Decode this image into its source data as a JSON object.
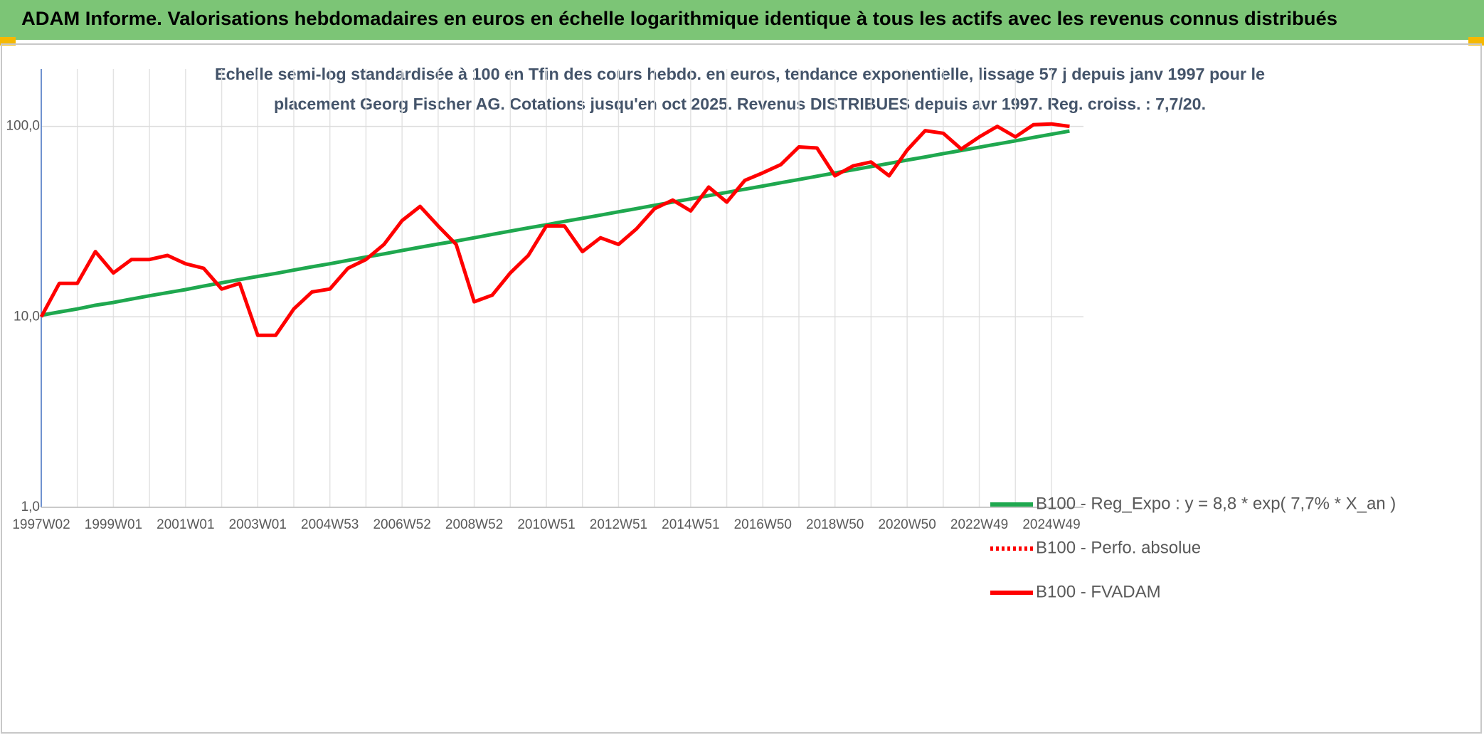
{
  "chart_data": {
    "type": "line",
    "title": "ADAM Informe. Valorisations hebdomadaires en euros en échelle logarithmique identique à tous les actifs avec les revenus connus distribués",
    "subtitle": [
      "Echelle semi-log standardisée à 100 en Tfin des cours hebdo. en euros, tendance exponentielle, lissage 57 j depuis janv 1997 pour le",
      "placement Georg Fischer AG. Cotations jusqu'en oct 2025. Revenus DISTRIBUES depuis avr 1997. Reg. croiss. : 7,7/20."
    ],
    "x": [
      "1997W02",
      null,
      null,
      null,
      "1999W01",
      null,
      null,
      null,
      "2001W01",
      null,
      null,
      null,
      "2003W01",
      null,
      null,
      null,
      "2004W53",
      null,
      null,
      null,
      "2006W52",
      null,
      null,
      null,
      "2008W52",
      null,
      null,
      null,
      "2010W51",
      null,
      null,
      null,
      "2012W51",
      null,
      null,
      null,
      "2014W51",
      null,
      null,
      null,
      "2016W50",
      null,
      null,
      null,
      "2018W50",
      null,
      null,
      null,
      "2020W50",
      null,
      null,
      null,
      "2022W49",
      null,
      null,
      null,
      "2024W49",
      null
    ],
    "log_scale": true,
    "ylim": [
      1,
      200
    ],
    "yticks": [
      {
        "value": 1,
        "label": "1,0"
      },
      {
        "value": 10,
        "label": "10,0"
      },
      {
        "value": 100,
        "label": "100,0"
      }
    ],
    "grid": true,
    "legend": "right",
    "series": [
      {
        "name": "B100 - Reg_Expo : y = 8,8 * exp( 7,7% *  X_an )",
        "color": "#1fa84f",
        "dash": false,
        "values": [
          10.2,
          10.6,
          11.0,
          11.5,
          11.9,
          12.4,
          12.9,
          13.4,
          13.9,
          14.5,
          15.1,
          15.7,
          16.3,
          16.9,
          17.6,
          18.3,
          19.0,
          19.8,
          20.6,
          21.4,
          22.3,
          23.2,
          24.1,
          25.0,
          26.0,
          27.1,
          28.2,
          29.3,
          30.4,
          31.7,
          32.9,
          34.2,
          35.6,
          37.0,
          38.5,
          40.0,
          41.6,
          43.3,
          45.0,
          46.8,
          48.6,
          50.6,
          52.6,
          54.7,
          56.9,
          59.1,
          61.5,
          63.9,
          66.5,
          69.1,
          71.9,
          74.7,
          77.7,
          80.8,
          84.0,
          87.4,
          90.9,
          94.5
        ]
      },
      {
        "name": "B100 - Perfo. absolue",
        "color": "#ff0000",
        "dash": true,
        "values": [
          10,
          15,
          15,
          22,
          17,
          20,
          20,
          21,
          19,
          18,
          14,
          15,
          8,
          8,
          11,
          13.5,
          14,
          18,
          20,
          24,
          32,
          38,
          30,
          24,
          12,
          13,
          17,
          21,
          30,
          30,
          22,
          26,
          24,
          29,
          37,
          41,
          36,
          48,
          40,
          52,
          57,
          63,
          78,
          77,
          55,
          62,
          65,
          55,
          75,
          95,
          92,
          76,
          88,
          100,
          88,
          102,
          103,
          100
        ]
      },
      {
        "name": "B100 - FVADAM",
        "color": "#ff0000",
        "dash": false,
        "values": [
          10,
          15,
          15,
          22,
          17,
          20,
          20,
          21,
          19,
          18,
          14,
          15,
          8,
          8,
          11,
          13.5,
          14,
          18,
          20,
          24,
          32,
          38,
          30,
          24,
          12,
          13,
          17,
          21,
          30,
          30,
          22,
          26,
          24,
          29,
          37,
          41,
          36,
          48,
          40,
          52,
          57,
          63,
          78,
          77,
          55,
          62,
          65,
          55,
          75,
          95,
          92,
          76,
          88,
          100,
          88,
          102,
          103,
          100
        ]
      }
    ]
  }
}
